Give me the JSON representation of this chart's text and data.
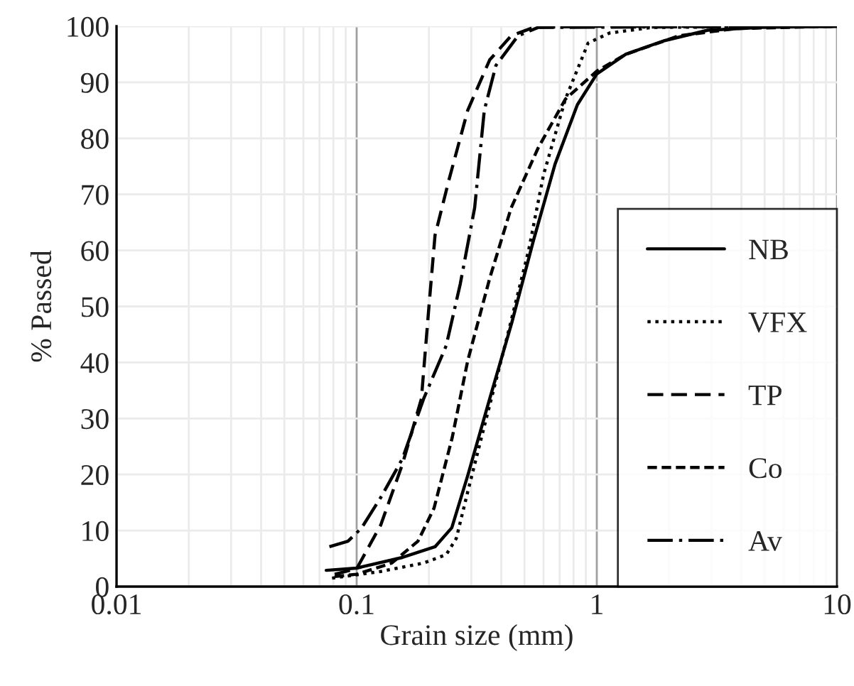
{
  "chart_data": {
    "type": "line",
    "xlabel": "Grain size (mm)",
    "ylabel": "% Passed",
    "log": "x",
    "xlim": [
      0.01,
      10
    ],
    "xticks": [
      0.01,
      0.1,
      1,
      10
    ],
    "ylim": [
      0,
      100
    ],
    "yticks": [
      0,
      10,
      20,
      30,
      40,
      50,
      60,
      70,
      80,
      90,
      100
    ],
    "grid": true,
    "legend": "bottom right",
    "marker": "none",
    "series": [
      {
        "name": "NB",
        "color": "#000000",
        "line_style": "solid",
        "x": [
          0.0747,
          0.1,
          0.155,
          0.212,
          0.249,
          0.29,
          0.358,
          0.442,
          0.545,
          0.67,
          0.83,
          1,
          1.32,
          1.9,
          2.9,
          4.9,
          9.8
        ],
        "values": [
          2.9,
          3.3,
          5.2,
          7.1,
          10.5,
          19.8,
          33.5,
          47,
          61.8,
          75.4,
          86,
          91.5,
          95,
          97.4,
          99.3,
          99.8,
          100
        ]
      },
      {
        "name": "VFX",
        "color": "#000000",
        "line_style": "dotted",
        "x": [
          0.079,
          0.126,
          0.19,
          0.236,
          0.26,
          0.29,
          0.34,
          0.42,
          0.52,
          0.6,
          0.74,
          0.92,
          1.13,
          1.7,
          10
        ],
        "values": [
          1.5,
          2.7,
          4.2,
          5.7,
          8.6,
          16.9,
          28.6,
          44,
          60,
          73.5,
          87,
          97,
          98.8,
          99.8,
          100
        ]
      },
      {
        "name": "TP",
        "color": "#000000",
        "line_style": "dashed",
        "x": [
          0.081,
          0.1,
          0.126,
          0.155,
          0.186,
          0.2,
          0.212,
          0.242,
          0.29,
          0.358,
          0.44,
          0.545,
          1,
          10
        ],
        "values": [
          2.2,
          3.2,
          11,
          21.8,
          33.5,
          50,
          62.7,
          72.5,
          85,
          94,
          98.3,
          99.8,
          100,
          100
        ]
      },
      {
        "name": "Co",
        "color": "#000000",
        "line_style": "short dashed",
        "x": [
          0.081,
          0.1,
          0.14,
          0.18,
          0.21,
          0.25,
          0.29,
          0.358,
          0.44,
          0.57,
          0.74,
          1,
          1.32,
          2.2,
          3.8,
          10
        ],
        "values": [
          1.8,
          2.2,
          4.2,
          8.1,
          14,
          26.6,
          40.3,
          55,
          67.6,
          78.3,
          87,
          92,
          95,
          98.3,
          99.6,
          100
        ]
      },
      {
        "name": "Av",
        "color": "#000000",
        "line_style": "dashdot",
        "x": [
          0.077,
          0.092,
          0.105,
          0.126,
          0.155,
          0.19,
          0.236,
          0.27,
          0.31,
          0.34,
          0.38,
          0.47,
          0.57,
          10
        ],
        "values": [
          7.1,
          8.1,
          10.5,
          15.9,
          22.8,
          33.5,
          43,
          54,
          67.6,
          85,
          93,
          98.3,
          99.8,
          100
        ]
      }
    ]
  }
}
